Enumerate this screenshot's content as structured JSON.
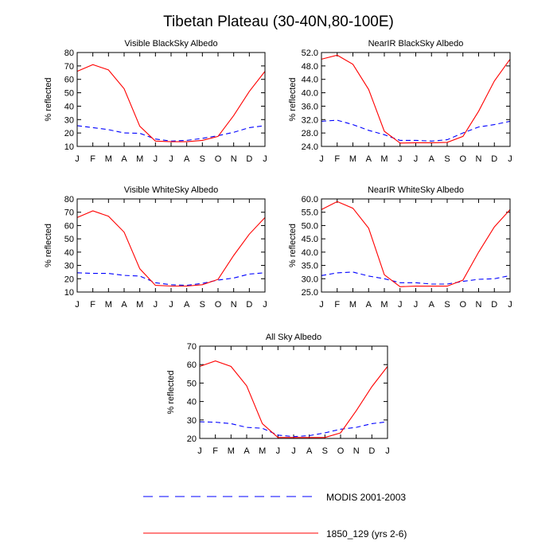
{
  "figure": {
    "title": "Tibetan Plateau (30-40N,80-100E)"
  },
  "legend": {
    "entries": [
      {
        "label": "MODIS 2001-2003",
        "color": "#0000ff",
        "dash": "dashed"
      },
      {
        "label": "1850_129 (yrs 2-6)",
        "color": "#ff0000",
        "dash": "solid"
      }
    ]
  },
  "chart_data": [
    {
      "type": "line",
      "title": "Visible BlackSky Albedo",
      "ylabel": "% reflected",
      "xlabel": "",
      "categories": [
        "J",
        "F",
        "M",
        "A",
        "M",
        "J",
        "J",
        "A",
        "S",
        "O",
        "N",
        "D",
        "J"
      ],
      "ylim": [
        10,
        80
      ],
      "yticks": [
        10,
        20,
        30,
        40,
        50,
        60,
        70,
        80
      ],
      "ytick_labels": [
        "10",
        "20",
        "30",
        "40",
        "50",
        "60",
        "70",
        "80"
      ],
      "series": [
        {
          "color": "#0000ff",
          "dash": "dashed",
          "values": [
            25.5,
            24.0,
            22.5,
            20.0,
            19.8,
            15.5,
            14.0,
            14.5,
            16.0,
            18.0,
            20.5,
            24.0,
            25.5
          ]
        },
        {
          "color": "#ff0000",
          "dash": "solid",
          "values": [
            66.0,
            71.0,
            67.0,
            53.0,
            25.0,
            14.0,
            13.5,
            13.5,
            14.5,
            17.5,
            33.0,
            51.0,
            66.0
          ]
        }
      ]
    },
    {
      "type": "line",
      "title": "NearIR BlackSky Albedo",
      "ylabel": "% reflected",
      "xlabel": "",
      "categories": [
        "J",
        "F",
        "M",
        "A",
        "M",
        "J",
        "J",
        "A",
        "S",
        "O",
        "N",
        "D",
        "J"
      ],
      "ylim": [
        24.0,
        52.0
      ],
      "yticks": [
        24,
        28,
        32,
        36,
        40,
        44,
        48,
        52
      ],
      "ytick_labels": [
        "24.0",
        "28.0",
        "32.0",
        "36.0",
        "40.0",
        "44.0",
        "48.0",
        "52.0"
      ],
      "series": [
        {
          "color": "#0000ff",
          "dash": "dashed",
          "values": [
            31.5,
            31.8,
            30.5,
            28.8,
            27.5,
            25.8,
            25.8,
            25.6,
            26.0,
            28.0,
            29.8,
            30.5,
            31.5
          ]
        },
        {
          "color": "#ff0000",
          "dash": "solid",
          "values": [
            50.0,
            51.2,
            48.5,
            41.0,
            28.5,
            25.0,
            25.1,
            25.1,
            25.2,
            27.0,
            34.5,
            43.5,
            50.0
          ]
        }
      ]
    },
    {
      "type": "line",
      "title": "Visible WhiteSky Albedo",
      "ylabel": "% reflected",
      "xlabel": "",
      "categories": [
        "J",
        "F",
        "M",
        "A",
        "M",
        "J",
        "J",
        "A",
        "S",
        "O",
        "N",
        "D",
        "J"
      ],
      "ylim": [
        10,
        80
      ],
      "yticks": [
        10,
        20,
        30,
        40,
        50,
        60,
        70,
        80
      ],
      "ytick_labels": [
        "10",
        "20",
        "30",
        "40",
        "50",
        "60",
        "70",
        "80"
      ],
      "series": [
        {
          "color": "#0000ff",
          "dash": "dashed",
          "values": [
            24.5,
            24.0,
            24.0,
            22.5,
            22.0,
            17.0,
            15.5,
            15.0,
            16.5,
            19.0,
            20.5,
            23.5,
            24.5
          ]
        },
        {
          "color": "#ff0000",
          "dash": "solid",
          "values": [
            66.0,
            71.0,
            67.0,
            55.0,
            27.5,
            15.0,
            14.5,
            14.5,
            15.5,
            19.5,
            37.5,
            53.5,
            66.0
          ]
        }
      ]
    },
    {
      "type": "line",
      "title": "NearIR WhiteSky Albedo",
      "ylabel": "% reflected",
      "xlabel": "",
      "categories": [
        "J",
        "F",
        "M",
        "A",
        "M",
        "J",
        "J",
        "A",
        "S",
        "O",
        "N",
        "D",
        "J"
      ],
      "ylim": [
        25.0,
        60.0
      ],
      "yticks": [
        25,
        30,
        35,
        40,
        45,
        50,
        55,
        60
      ],
      "ytick_labels": [
        "25.0",
        "30.0",
        "35.0",
        "40.0",
        "45.0",
        "50.0",
        "55.0",
        "60.0"
      ],
      "series": [
        {
          "color": "#0000ff",
          "dash": "dashed",
          "values": [
            31.2,
            32.2,
            32.5,
            31.0,
            30.0,
            28.5,
            28.5,
            28.0,
            28.0,
            29.0,
            29.8,
            30.0,
            31.2
          ]
        },
        {
          "color": "#ff0000",
          "dash": "solid",
          "values": [
            56.0,
            59.0,
            56.5,
            49.0,
            31.5,
            27.0,
            27.2,
            27.2,
            27.2,
            29.5,
            40.0,
            49.5,
            56.0
          ]
        }
      ]
    },
    {
      "type": "line",
      "title": "All Sky Albedo",
      "ylabel": "% reflected",
      "xlabel": "",
      "categories": [
        "J",
        "F",
        "M",
        "A",
        "M",
        "J",
        "J",
        "A",
        "S",
        "O",
        "N",
        "D",
        "J"
      ],
      "ylim": [
        20,
        70
      ],
      "yticks": [
        20,
        30,
        40,
        50,
        60,
        70
      ],
      "ytick_labels": [
        "20",
        "30",
        "40",
        "50",
        "60",
        "70"
      ],
      "series": [
        {
          "color": "#0000ff",
          "dash": "dashed",
          "values": [
            29.0,
            28.8,
            28.0,
            26.0,
            25.5,
            21.8,
            21.0,
            21.5,
            23.0,
            25.0,
            26.0,
            28.0,
            29.0
          ]
        },
        {
          "color": "#ff0000",
          "dash": "solid",
          "values": [
            59.0,
            62.0,
            59.0,
            48.5,
            28.0,
            20.5,
            20.5,
            20.5,
            20.5,
            23.0,
            35.0,
            48.0,
            59.0
          ]
        }
      ]
    }
  ]
}
